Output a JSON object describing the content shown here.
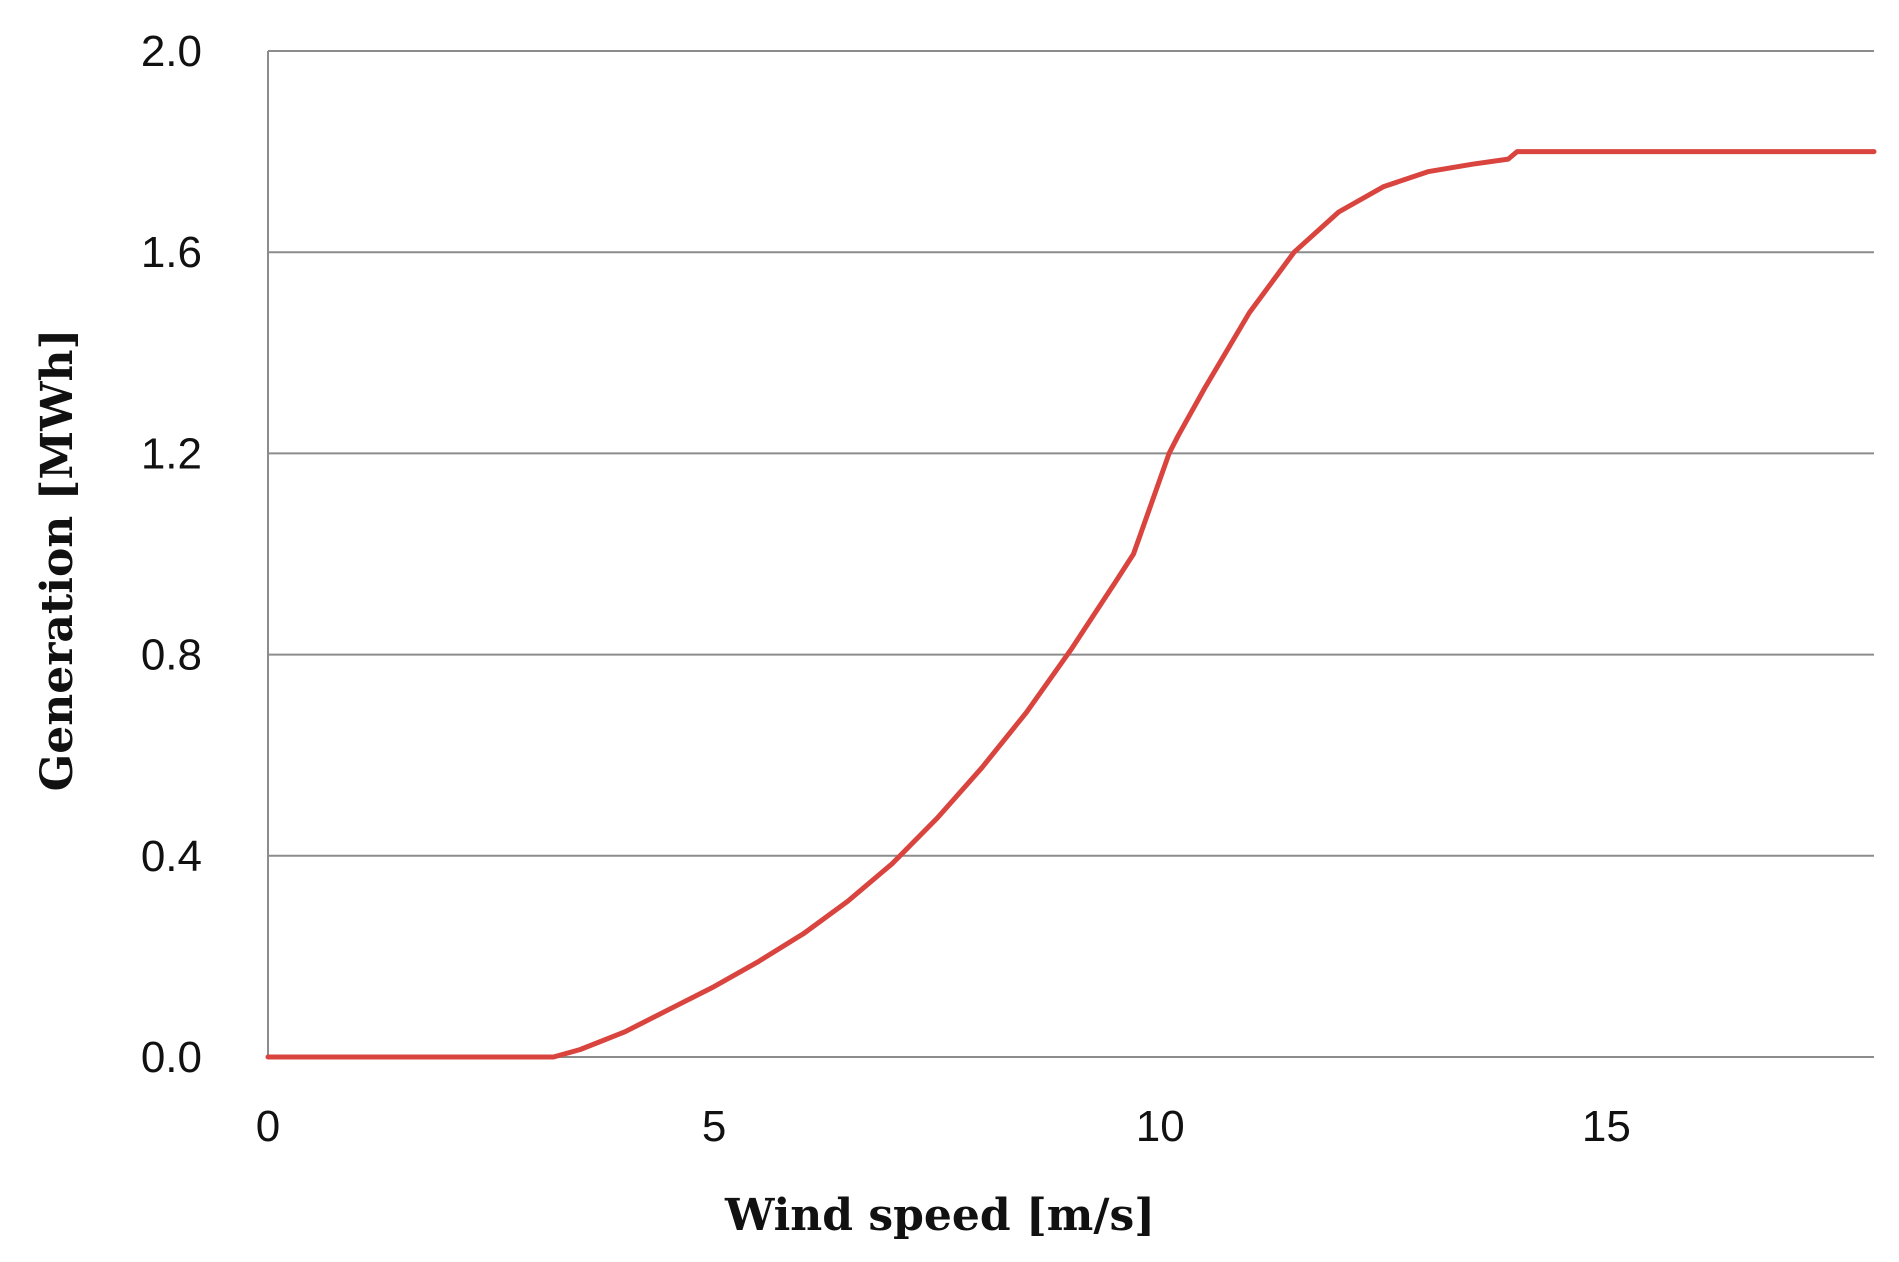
{
  "chart_data": {
    "type": "line",
    "title": "",
    "xlabel": "Wind speed [m/s]",
    "ylabel": "Generation [MWh]",
    "xlim": [
      0,
      18
    ],
    "ylim": [
      0,
      2.0
    ],
    "x_ticks": [
      0,
      5,
      10,
      15
    ],
    "x_tick_labels": [
      "0",
      "5",
      "10",
      "15"
    ],
    "y_ticks": [
      0,
      0.4,
      0.8,
      1.2,
      1.6,
      2.0
    ],
    "y_tick_labels": [
      "0.0",
      "0.4",
      "0.8",
      "1.2",
      "1.6",
      "2.0"
    ],
    "grid": "horizontal",
    "legend": "none",
    "line_color": "#D9443F",
    "grid_color": "#8C8C8C",
    "series": [
      {
        "x": [
          0,
          1,
          2,
          3,
          3.2,
          3.5,
          4,
          4.5,
          5,
          5.5,
          6,
          6.5,
          7,
          7.5,
          8,
          8.5,
          9,
          9.5,
          9.7,
          10,
          10.1,
          10.2,
          10.5,
          11,
          11.5,
          12,
          12.5,
          13,
          13.5,
          13.9,
          14,
          15,
          16,
          17,
          18
        ],
        "y": [
          0,
          0,
          0,
          0,
          0,
          0.015,
          0.05,
          0.095,
          0.14,
          0.19,
          0.245,
          0.31,
          0.385,
          0.475,
          0.575,
          0.685,
          0.81,
          0.945,
          1.0,
          1.15,
          1.2,
          1.235,
          1.33,
          1.48,
          1.6,
          1.68,
          1.73,
          1.76,
          1.775,
          1.785,
          1.8,
          1.8,
          1.8,
          1.8,
          1.8
        ]
      }
    ]
  }
}
